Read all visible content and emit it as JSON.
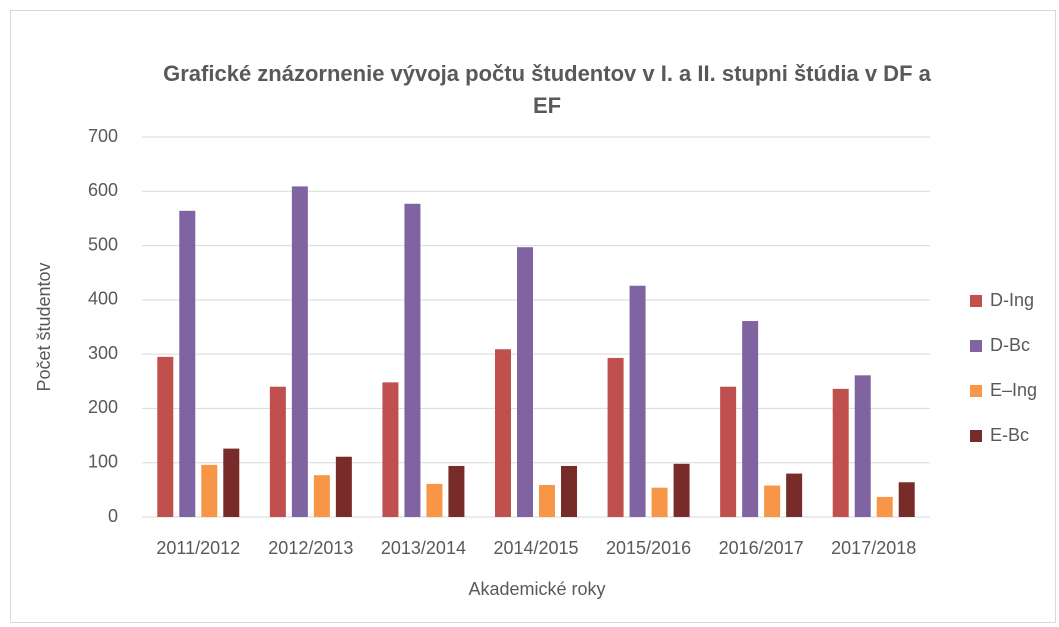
{
  "chart_data": {
    "type": "bar",
    "title": "Grafické znázornenie vývoja počtu študentov v I. a II. stupni štúdia v DF a EF",
    "xlabel": "Akademické roky",
    "ylabel": "Počet  študentov",
    "categories": [
      "2011/2012",
      "2012/2013",
      "2013/2014",
      "2014/2015",
      "2015/2016",
      "2016/2017",
      "2017/2018"
    ],
    "series": [
      {
        "name": "D-Ing",
        "color": "#c0504d",
        "values": [
          295,
          240,
          248,
          309,
          293,
          240,
          236
        ]
      },
      {
        "name": "D-Bc",
        "color": "#8064a2",
        "values": [
          564,
          609,
          577,
          497,
          426,
          361,
          261
        ]
      },
      {
        "name": "E–Ing",
        "color": "#f79646",
        "values": [
          96,
          77,
          61,
          59,
          54,
          58,
          37
        ]
      },
      {
        "name": "E-Bc",
        "color": "#772c2a",
        "values": [
          126,
          111,
          94,
          94,
          98,
          80,
          64
        ]
      }
    ],
    "ylim": [
      0,
      700
    ],
    "yticks": [
      0,
      100,
      200,
      300,
      400,
      500,
      600,
      700
    ],
    "grid": true,
    "legend": "right"
  }
}
